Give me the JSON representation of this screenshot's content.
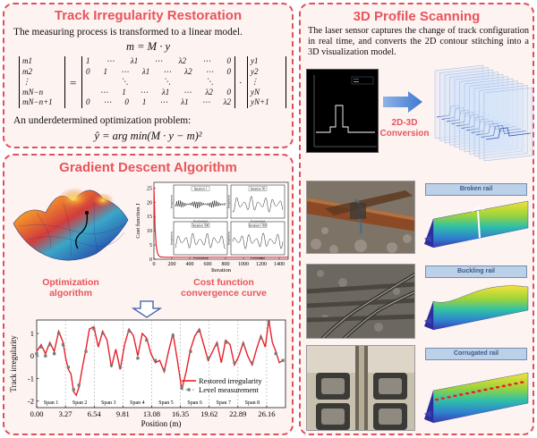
{
  "track_panel": {
    "title": "Track Irregularity Restoration",
    "intro": "The measuring process is transformed to a linear model.",
    "model_eq": "m = M · y",
    "lhs": [
      "m1",
      "m2",
      "⋮",
      "mN−n",
      "mN−n+1"
    ],
    "matrix_rows": [
      [
        "1",
        "⋯",
        "λ1",
        "⋯",
        "λ2",
        "⋯",
        "0"
      ],
      [
        "0",
        "1",
        "⋯",
        "λ1",
        "⋯",
        "λ2",
        "⋯",
        "0"
      ],
      [
        "",
        "",
        "⋱",
        "",
        "⋱",
        "",
        "⋱",
        ""
      ],
      [
        "",
        "⋯",
        "1",
        "⋯",
        "λ1",
        "⋯",
        "λ2",
        "0"
      ],
      [
        "0",
        "⋯",
        "0",
        "1",
        "⋯",
        "λ1",
        "⋯",
        "λ2"
      ]
    ],
    "rhs": [
      "y1",
      "y2",
      "⋮",
      "yN",
      "yN+1"
    ],
    "opt_intro": "An underdetermined optimization problem:",
    "opt_eq": "ŷ = arg min(M · y − m)²"
  },
  "gradient_panel": {
    "title": "Gradient Descent Algorithm",
    "surface_label": [
      "Optimization",
      "algorithm"
    ],
    "cost_label": [
      "Cost function",
      "convergence curve"
    ],
    "cost_chart": {
      "ylabel": "Cost function J",
      "xlabel": "Iteration",
      "x_ticks": [
        "0",
        "200",
        "400",
        "600",
        "800",
        "1000",
        "1200",
        "1400"
      ],
      "y_ticks": [
        "0",
        "5",
        "10",
        "15",
        "20",
        "25"
      ],
      "insets": [
        "Iteration 1",
        "Iteration 50",
        "Iteration 500",
        "Iteration 1500"
      ],
      "inset_ylabel": "Irregularity",
      "inset_xlabel": "Position(m)"
    }
  },
  "scan_panel": {
    "title": "3D Profile Scanning",
    "desc": "The laser sensor captures the change of track configuration in real time, and converts the 2D contour stitching into a 3D visualization model.",
    "conversion_label": [
      "2D-3D",
      "Conversion"
    ],
    "cases": [
      "Broken rail",
      "Buckling rail",
      "Corrugated rail"
    ]
  },
  "chart_data": {
    "type": "line",
    "xlabel": "Position (m)",
    "ylabel": "Track irregularity",
    "x_ticks": [
      "0.00",
      "3.27",
      "6.54",
      "9.81",
      "13.08",
      "16.35",
      "19.62",
      "22.89",
      "26.16"
    ],
    "y_ticks": [
      "1",
      "0",
      "-1",
      "-2"
    ],
    "xlim": [
      0,
      28.3
    ],
    "ylim": [
      -2.3,
      1.6
    ],
    "spans": [
      "Span 1",
      "Span 2",
      "Span 3",
      "Span 4",
      "Span 5",
      "Span 6",
      "Span 7",
      "Span 8"
    ],
    "series": [
      {
        "name": "Restored irregularity",
        "color": "#e8202a",
        "x": [
          0,
          0.5,
          1,
          1.5,
          2,
          2.5,
          3,
          3.3,
          3.6,
          3.9,
          4.2,
          4.5,
          4.8,
          5.2,
          5.6,
          6,
          6.5,
          7,
          7.5,
          8,
          8.5,
          9,
          9.5,
          10,
          10.5,
          11,
          11.5,
          12,
          12.5,
          13,
          13.5,
          14,
          14.5,
          15,
          15.5,
          16,
          16.5,
          17,
          17.5,
          18,
          18.5,
          19,
          19.5,
          20,
          20.5,
          21,
          21.5,
          22,
          22.5,
          23,
          23.5,
          24,
          24.5,
          25,
          25.5,
          26,
          26.4,
          26.8,
          27.2,
          27.6,
          28
        ],
        "y": [
          0.2,
          0.5,
          0.1,
          0.6,
          0.2,
          1.1,
          0.6,
          -0.1,
          -0.6,
          -0.8,
          -1.6,
          -1.75,
          -1.4,
          -0.5,
          0.3,
          1.2,
          1.3,
          0.4,
          1.1,
          0.7,
          -0.5,
          0.3,
          -0.6,
          0.5,
          1.2,
          0.9,
          0.0,
          1.0,
          0.8,
          0.1,
          -0.3,
          -0.2,
          -0.7,
          0.2,
          1.0,
          -0.2,
          -1.5,
          -0.7,
          0.3,
          0.9,
          1.2,
          0.5,
          -0.2,
          0.2,
          0.6,
          -0.3,
          0.7,
          0.5,
          -0.4,
          0.0,
          0.6,
          0.0,
          -0.4,
          0.3,
          0.9,
          0.4,
          1.6,
          0.6,
          0.2,
          -0.3,
          -0.2
        ]
      },
      {
        "name": "Level measurement",
        "color": "#777777",
        "x": [
          0,
          0.5,
          1,
          1.5,
          2,
          2.5,
          3,
          3.6,
          4.2,
          4.8,
          5.6,
          6.5,
          7.5,
          8.5,
          9.5,
          10.5,
          11.5,
          12.5,
          13.5,
          14.5,
          15.5,
          16.5,
          17.5,
          18.5,
          19.5,
          20.5,
          21.5,
          22.5,
          23.5,
          24.5,
          25.5,
          26.4,
          27.2,
          28
        ],
        "y": [
          0.1,
          0.4,
          0.0,
          0.5,
          0.1,
          1.0,
          0.5,
          -0.5,
          -1.5,
          -1.3,
          0.2,
          1.2,
          1.0,
          -0.4,
          -0.5,
          1.1,
          -0.1,
          0.7,
          -0.2,
          -0.6,
          0.9,
          -1.4,
          0.2,
          1.1,
          -0.1,
          0.5,
          0.6,
          -0.3,
          0.5,
          -0.3,
          0.8,
          1.5,
          0.1,
          -0.2
        ]
      }
    ],
    "legend_placement": "bottom-right"
  }
}
